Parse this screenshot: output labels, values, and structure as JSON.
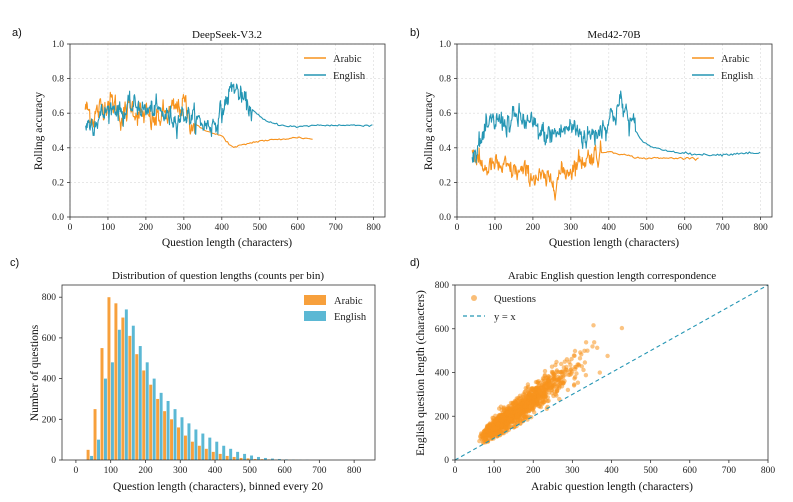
{
  "colors": {
    "arabic": "#f7931e",
    "english": "#2596b4",
    "arabic_bar": "#f7a03c",
    "english_bar": "#5bb8d4"
  },
  "chart_data": [
    {
      "panel": "a)",
      "type": "line",
      "title": "DeepSeek-V3.2",
      "xlabel": "Question length (characters)",
      "ylabel": "Rolling accuracy",
      "xlim": [
        0,
        830
      ],
      "ylim": [
        0.0,
        1.0
      ],
      "xticks": [
        "0",
        "100",
        "200",
        "300",
        "400",
        "500",
        "600",
        "700",
        "800"
      ],
      "yticks": [
        "0.0",
        "0.2",
        "0.4",
        "0.6",
        "0.8",
        "1.0"
      ],
      "legend": [
        "Arabic",
        "English"
      ],
      "series": [
        {
          "name": "Arabic",
          "noisy_until": 330,
          "noise": 0.07,
          "x": [
            40,
            60,
            80,
            100,
            120,
            140,
            160,
            180,
            200,
            220,
            240,
            260,
            280,
            300,
            320,
            340,
            360,
            380,
            400,
            420,
            430,
            460,
            500,
            560,
            600,
            640
          ],
          "y": [
            0.63,
            0.58,
            0.62,
            0.68,
            0.64,
            0.57,
            0.65,
            0.6,
            0.58,
            0.55,
            0.58,
            0.6,
            0.62,
            0.66,
            0.55,
            0.52,
            0.5,
            0.48,
            0.47,
            0.42,
            0.4,
            0.42,
            0.44,
            0.45,
            0.46,
            0.45
          ]
        },
        {
          "name": "English",
          "noisy_until": 480,
          "noise": 0.06,
          "x": [
            40,
            60,
            80,
            100,
            120,
            140,
            160,
            180,
            200,
            220,
            240,
            260,
            280,
            300,
            320,
            340,
            360,
            380,
            400,
            420,
            430,
            440,
            460,
            480,
            500,
            520,
            560,
            600,
            640,
            700,
            760,
            800
          ],
          "y": [
            0.53,
            0.55,
            0.58,
            0.62,
            0.64,
            0.6,
            0.63,
            0.65,
            0.61,
            0.62,
            0.6,
            0.58,
            0.57,
            0.6,
            0.58,
            0.55,
            0.53,
            0.54,
            0.6,
            0.72,
            0.76,
            0.73,
            0.66,
            0.62,
            0.58,
            0.55,
            0.53,
            0.52,
            0.53,
            0.53,
            0.53,
            0.53
          ]
        }
      ]
    },
    {
      "panel": "b)",
      "type": "line",
      "title": "Med42-70B",
      "xlabel": "Question length (characters)",
      "ylabel": "Rolling accuracy",
      "xlim": [
        0,
        830
      ],
      "ylim": [
        0.0,
        1.0
      ],
      "xticks": [
        "0",
        "100",
        "200",
        "300",
        "400",
        "500",
        "600",
        "700",
        "800"
      ],
      "yticks": [
        "0.0",
        "0.2",
        "0.4",
        "0.6",
        "0.8",
        "1.0"
      ],
      "legend": [
        "Arabic",
        "English"
      ],
      "series": [
        {
          "name": "Arabic",
          "noisy_until": 380,
          "noise": 0.06,
          "x": [
            40,
            60,
            80,
            100,
            120,
            140,
            160,
            180,
            200,
            220,
            240,
            260,
            280,
            300,
            320,
            340,
            360,
            380,
            400,
            440,
            480,
            520,
            560,
            600,
            640
          ],
          "y": [
            0.4,
            0.3,
            0.28,
            0.3,
            0.28,
            0.27,
            0.26,
            0.25,
            0.24,
            0.22,
            0.2,
            0.22,
            0.26,
            0.28,
            0.32,
            0.34,
            0.36,
            0.37,
            0.38,
            0.36,
            0.34,
            0.34,
            0.34,
            0.34,
            0.34
          ]
        },
        {
          "name": "English",
          "noisy_until": 470,
          "noise": 0.07,
          "x": [
            40,
            60,
            80,
            100,
            120,
            140,
            160,
            180,
            200,
            220,
            240,
            260,
            280,
            300,
            320,
            340,
            360,
            380,
            400,
            420,
            430,
            440,
            460,
            480,
            500,
            520,
            560,
            600,
            640,
            700,
            760,
            800
          ],
          "y": [
            0.37,
            0.42,
            0.5,
            0.55,
            0.56,
            0.54,
            0.58,
            0.55,
            0.52,
            0.48,
            0.47,
            0.48,
            0.5,
            0.52,
            0.5,
            0.46,
            0.48,
            0.52,
            0.56,
            0.62,
            0.66,
            0.62,
            0.54,
            0.46,
            0.42,
            0.4,
            0.38,
            0.37,
            0.36,
            0.36,
            0.37,
            0.37
          ]
        }
      ]
    },
    {
      "panel": "c)",
      "type": "bar",
      "title": "Distribution of question lengths (counts per bin)",
      "xlabel": "Question length (characters), binned every 20",
      "ylabel": "Number of questions",
      "xlim": [
        -40,
        860
      ],
      "ylim": [
        0,
        860
      ],
      "xticks": [
        "0",
        "100",
        "200",
        "300",
        "400",
        "500",
        "600",
        "700",
        "800"
      ],
      "yticks": [
        "0",
        "200",
        "400",
        "600",
        "800"
      ],
      "legend": [
        "Arabic",
        "English"
      ],
      "bin_width": 20,
      "bins": [
        40,
        60,
        80,
        100,
        120,
        140,
        160,
        180,
        200,
        220,
        240,
        260,
        280,
        300,
        320,
        340,
        360,
        380,
        400,
        420,
        440,
        460,
        480,
        500,
        520,
        540,
        560,
        580,
        600,
        620,
        640,
        660
      ],
      "series": [
        {
          "name": "Arabic",
          "values": [
            50,
            250,
            550,
            800,
            770,
            700,
            610,
            520,
            440,
            370,
            300,
            240,
            200,
            160,
            120,
            90,
            70,
            55,
            40,
            30,
            20,
            15,
            10,
            8,
            5,
            4,
            3,
            2,
            1,
            1,
            1,
            0
          ]
        },
        {
          "name": "English",
          "values": [
            20,
            100,
            400,
            480,
            640,
            740,
            660,
            560,
            480,
            400,
            330,
            290,
            250,
            210,
            180,
            150,
            130,
            110,
            90,
            70,
            55,
            40,
            30,
            22,
            15,
            10,
            7,
            5,
            3,
            2,
            1,
            1
          ]
        }
      ]
    },
    {
      "panel": "d)",
      "type": "scatter",
      "title": "Arabic  English question length correspondence",
      "xlabel": "Arabic question length (characters)",
      "ylabel": "English question length (characters)",
      "xlim": [
        0,
        800
      ],
      "ylim": [
        0,
        800
      ],
      "xticks": [
        "0",
        "100",
        "200",
        "300",
        "400",
        "500",
        "600",
        "700",
        "800"
      ],
      "yticks": [
        "0",
        "200",
        "400",
        "600",
        "800"
      ],
      "legend": [
        "Questions",
        "y = x"
      ],
      "relationship": {
        "slope": 1.35,
        "intercept": 10,
        "n_points": 1400,
        "x_range": [
          40,
          560
        ]
      }
    }
  ]
}
